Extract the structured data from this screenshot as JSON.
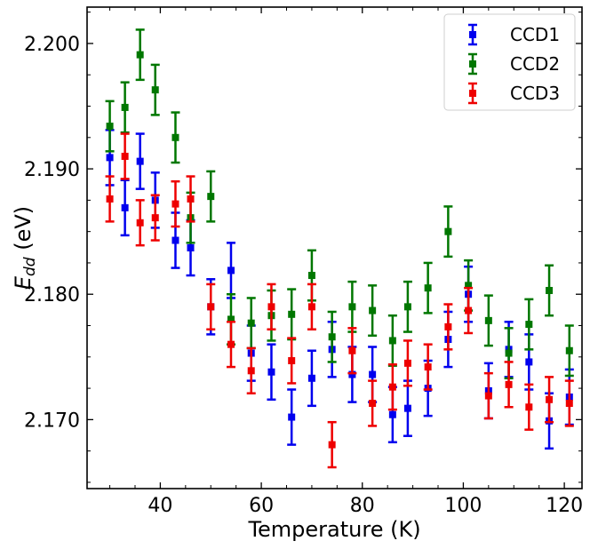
{
  "chart_data": {
    "type": "scatter",
    "xlabel": "Temperature (K)",
    "ylabel_main": "E",
    "ylabel_sub": "dd",
    "ylabel_unit": " (eV)",
    "xlim": [
      25.5,
      123.5
    ],
    "ylim": [
      2.1645,
      2.2029
    ],
    "xticks": [
      40,
      60,
      80,
      100,
      120
    ],
    "xtick_labels": [
      "40",
      "60",
      "80",
      "100",
      "120"
    ],
    "yticks": [
      2.17,
      2.18,
      2.19,
      2.2
    ],
    "ytick_labels": [
      "2.170",
      "2.180",
      "2.190",
      "2.200"
    ],
    "xminor_step": 5,
    "yminor_step": 0.0025,
    "legend_position": "top-right",
    "series": [
      {
        "name": "CCD1",
        "color": "#0000ee",
        "x": [
          30,
          33,
          36,
          39,
          43,
          46,
          50,
          54,
          58,
          62,
          66,
          70,
          74,
          78,
          82,
          86,
          89,
          93,
          97,
          101,
          105,
          109,
          113,
          117,
          121
        ],
        "y": [
          2.1909,
          2.1869,
          2.1906,
          2.1875,
          2.1843,
          2.1837,
          2.179,
          2.1819,
          2.1753,
          2.1738,
          2.1702,
          2.1733,
          2.1756,
          2.1736,
          2.1736,
          2.1704,
          2.1709,
          2.1725,
          2.1764,
          2.18,
          2.1723,
          2.1756,
          2.1746,
          2.1699,
          2.1718
        ],
        "err": [
          0.0022,
          0.0022,
          0.0022,
          0.0022,
          0.0022,
          0.0022,
          0.0022,
          0.0022,
          0.0022,
          0.0022,
          0.0022,
          0.0022,
          0.0022,
          0.0022,
          0.0022,
          0.0022,
          0.0022,
          0.0022,
          0.0022,
          0.0022,
          0.0022,
          0.0022,
          0.0022,
          0.0022,
          0.0022
        ]
      },
      {
        "name": "CCD2",
        "color": "#007700",
        "x": [
          30,
          33,
          36,
          39,
          43,
          46,
          50,
          54,
          58,
          62,
          66,
          70,
          74,
          78,
          82,
          86,
          89,
          93,
          97,
          101,
          105,
          109,
          113,
          117,
          121
        ],
        "y": [
          2.1934,
          2.1949,
          2.1991,
          2.1963,
          2.1925,
          2.1861,
          2.1878,
          2.178,
          2.1777,
          2.1783,
          2.1784,
          2.1815,
          2.1766,
          2.179,
          2.1787,
          2.1763,
          2.179,
          2.1805,
          2.185,
          2.1807,
          2.1779,
          2.1753,
          2.1776,
          2.1803,
          2.1755
        ],
        "err": [
          0.002,
          0.002,
          0.002,
          0.002,
          0.002,
          0.002,
          0.002,
          0.002,
          0.002,
          0.002,
          0.002,
          0.002,
          0.002,
          0.002,
          0.002,
          0.002,
          0.002,
          0.002,
          0.002,
          0.002,
          0.002,
          0.002,
          0.002,
          0.002,
          0.002
        ]
      },
      {
        "name": "CCD3",
        "color": "#ee0000",
        "x": [
          30,
          33,
          36,
          39,
          43,
          46,
          50,
          54,
          58,
          62,
          66,
          70,
          74,
          78,
          82,
          86,
          89,
          93,
          97,
          101,
          105,
          109,
          113,
          117,
          121
        ],
        "y": [
          2.1876,
          2.191,
          2.1857,
          2.1861,
          2.1872,
          2.1876,
          2.179,
          2.176,
          2.1739,
          2.179,
          2.1747,
          2.179,
          2.168,
          2.1755,
          2.1713,
          2.1726,
          2.1745,
          2.1742,
          2.1774,
          2.1787,
          2.1719,
          2.1728,
          2.171,
          2.1716,
          2.1713
        ],
        "err": [
          0.0018,
          0.0018,
          0.0018,
          0.0018,
          0.0018,
          0.0018,
          0.0018,
          0.0018,
          0.0018,
          0.0018,
          0.0018,
          0.0018,
          0.0018,
          0.0018,
          0.0018,
          0.0018,
          0.0018,
          0.0018,
          0.0018,
          0.0018,
          0.0018,
          0.0018,
          0.0018,
          0.0018,
          0.0018
        ]
      }
    ]
  }
}
